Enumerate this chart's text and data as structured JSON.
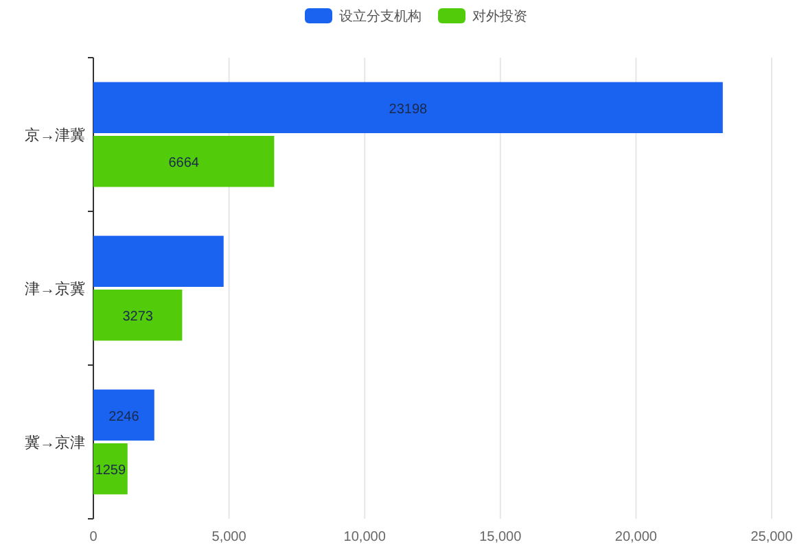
{
  "chart_data": {
    "type": "bar",
    "orientation": "horizontal",
    "categories": [
      "京→津冀",
      "津→京冀",
      "冀→京津"
    ],
    "series": [
      {
        "name": "设立分支机构",
        "color": "#1a62f0",
        "values": [
          23198,
          4800,
          2246
        ],
        "value_labels": [
          "23198",
          null,
          "2246"
        ]
      },
      {
        "name": "对外投资",
        "color": "#52cc0a",
        "values": [
          6664,
          3273,
          1259
        ],
        "value_labels": [
          "6664",
          "3273",
          "1259"
        ]
      }
    ],
    "xlim": [
      0,
      25000
    ],
    "xticks": [
      {
        "value": 0,
        "label": "0"
      },
      {
        "value": 5000,
        "label": "5,000"
      },
      {
        "value": 10000,
        "label": "10,000"
      },
      {
        "value": 15000,
        "label": "15,000"
      },
      {
        "value": 20000,
        "label": "20,000"
      },
      {
        "value": 25000,
        "label": "25,000"
      }
    ],
    "grid": "x",
    "legend": "top"
  }
}
